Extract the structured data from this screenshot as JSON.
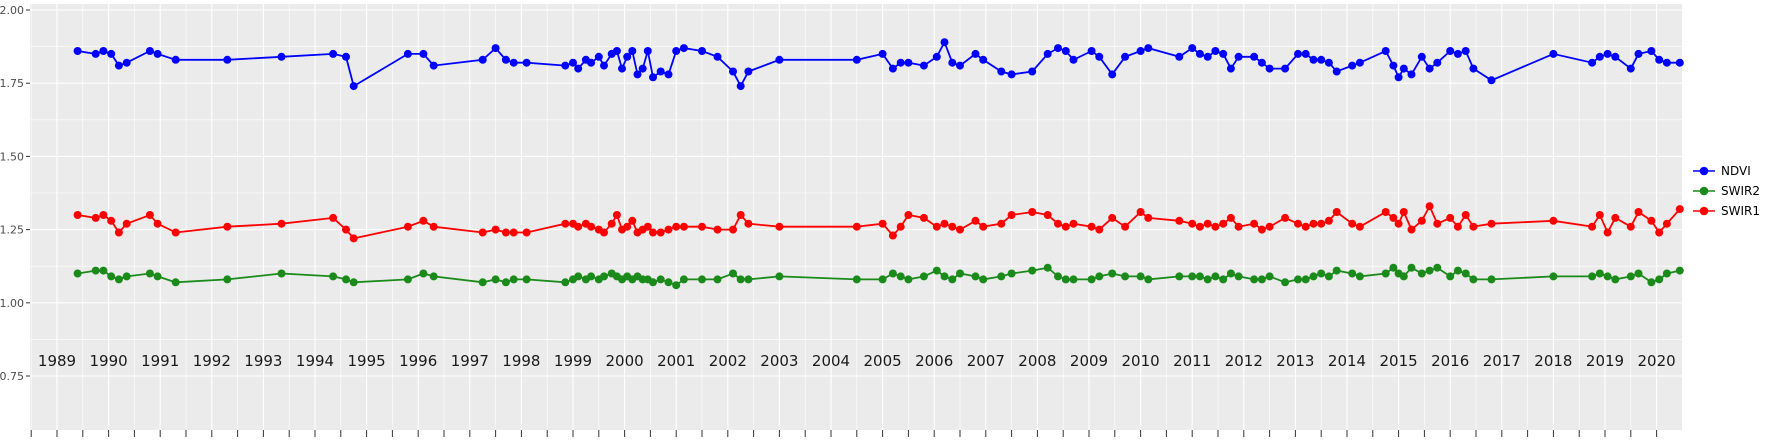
{
  "page": {
    "background": "#FFFFFF"
  },
  "chart_data": {
    "type": "line",
    "title": "",
    "xlabel": "",
    "ylabel": "",
    "panel_background": "#EBEBEB",
    "grid_color": "#FFFFFF",
    "axis_text_color": "#4D4D4D",
    "x_axis_label_color": "#1A1A1A",
    "tick_mark_color": "#333333",
    "legend_position": "right",
    "grid": true,
    "ylim": [
      0.75,
      2.0
    ],
    "xlim": [
      1988.47,
      2020.48
    ],
    "y_tick_labels": [
      "0.75",
      "1.00",
      "1.25",
      "1.50",
      "1.75",
      "2.00"
    ],
    "x_tick_labels": [
      "1989",
      "1990",
      "1991",
      "1992",
      "1993",
      "1994",
      "1995",
      "1996",
      "1997",
      "1998",
      "1999",
      "2000",
      "2001",
      "2002",
      "2003",
      "2004",
      "2005",
      "2006",
      "2007",
      "2008",
      "2009",
      "2010",
      "2011",
      "2012",
      "2013",
      "2014",
      "2015",
      "2016",
      "2017",
      "2018",
      "2019",
      "2020"
    ],
    "x": [
      1989.4,
      1989.75,
      1989.9,
      1990.05,
      1990.2,
      1990.35,
      1990.8,
      1990.95,
      1991.3,
      1992.3,
      1993.35,
      1994.35,
      1994.6,
      1994.75,
      1995.8,
      1996.1,
      1996.3,
      1997.25,
      1997.5,
      1997.7,
      1997.85,
      1998.1,
      1998.85,
      1999.0,
      1999.1,
      1999.25,
      1999.35,
      1999.5,
      1999.6,
      1999.75,
      1999.85,
      1999.95,
      2000.05,
      2000.15,
      2000.25,
      2000.35,
      2000.45,
      2000.55,
      2000.7,
      2000.85,
      2001.0,
      2001.15,
      2001.5,
      2001.8,
      2002.1,
      2002.25,
      2002.4,
      2003.0,
      2004.5,
      2005.0,
      2005.2,
      2005.35,
      2005.5,
      2005.8,
      2006.05,
      2006.2,
      2006.35,
      2006.5,
      2006.8,
      2006.95,
      2007.3,
      2007.5,
      2007.9,
      2008.2,
      2008.4,
      2008.55,
      2008.7,
      2009.05,
      2009.2,
      2009.45,
      2009.7,
      2010.0,
      2010.15,
      2010.75,
      2011.0,
      2011.15,
      2011.3,
      2011.45,
      2011.6,
      2011.75,
      2011.9,
      2012.2,
      2012.35,
      2012.5,
      2012.8,
      2013.05,
      2013.2,
      2013.35,
      2013.5,
      2013.65,
      2013.8,
      2014.1,
      2014.25,
      2014.75,
      2014.9,
      2015.0,
      2015.1,
      2015.25,
      2015.45,
      2015.6,
      2015.75,
      2016.0,
      2016.15,
      2016.3,
      2016.45,
      2016.8,
      2018.0,
      2018.75,
      2018.9,
      2019.05,
      2019.2,
      2019.5,
      2019.65,
      2019.9,
      2020.05,
      2020.2,
      2020.45
    ],
    "series": [
      {
        "name": "NDVI",
        "color": "#0000FF",
        "values": [
          1.86,
          1.85,
          1.86,
          1.85,
          1.81,
          1.82,
          1.86,
          1.85,
          1.83,
          1.83,
          1.84,
          1.85,
          1.84,
          1.74,
          1.85,
          1.85,
          1.81,
          1.83,
          1.87,
          1.83,
          1.82,
          1.82,
          1.81,
          1.82,
          1.8,
          1.83,
          1.82,
          1.84,
          1.81,
          1.85,
          1.86,
          1.8,
          1.84,
          1.86,
          1.78,
          1.8,
          1.86,
          1.77,
          1.79,
          1.78,
          1.86,
          1.87,
          1.86,
          1.84,
          1.79,
          1.74,
          1.79,
          1.83,
          1.83,
          1.85,
          1.8,
          1.82,
          1.82,
          1.81,
          1.84,
          1.89,
          1.82,
          1.81,
          1.85,
          1.83,
          1.79,
          1.78,
          1.79,
          1.85,
          1.87,
          1.86,
          1.83,
          1.86,
          1.84,
          1.78,
          1.84,
          1.86,
          1.87,
          1.84,
          1.87,
          1.85,
          1.84,
          1.86,
          1.85,
          1.8,
          1.84,
          1.84,
          1.82,
          1.8,
          1.8,
          1.85,
          1.85,
          1.83,
          1.83,
          1.82,
          1.79,
          1.81,
          1.82,
          1.86,
          1.81,
          1.77,
          1.8,
          1.78,
          1.84,
          1.8,
          1.82,
          1.86,
          1.85,
          1.86,
          1.8,
          1.76,
          1.85,
          1.82,
          1.84,
          1.85,
          1.84,
          1.8,
          1.85,
          1.86,
          1.83,
          1.82,
          1.82
        ]
      },
      {
        "name": "SWIR2",
        "color": "#1A8A1A",
        "values": [
          1.1,
          1.11,
          1.11,
          1.09,
          1.08,
          1.09,
          1.1,
          1.09,
          1.07,
          1.08,
          1.1,
          1.09,
          1.08,
          1.07,
          1.08,
          1.1,
          1.09,
          1.07,
          1.08,
          1.07,
          1.08,
          1.08,
          1.07,
          1.08,
          1.09,
          1.08,
          1.09,
          1.08,
          1.09,
          1.1,
          1.09,
          1.08,
          1.09,
          1.08,
          1.09,
          1.08,
          1.08,
          1.07,
          1.08,
          1.07,
          1.06,
          1.08,
          1.08,
          1.08,
          1.1,
          1.08,
          1.08,
          1.09,
          1.08,
          1.08,
          1.1,
          1.09,
          1.08,
          1.09,
          1.11,
          1.09,
          1.08,
          1.1,
          1.09,
          1.08,
          1.09,
          1.1,
          1.11,
          1.12,
          1.09,
          1.08,
          1.08,
          1.08,
          1.09,
          1.1,
          1.09,
          1.09,
          1.08,
          1.09,
          1.09,
          1.09,
          1.08,
          1.09,
          1.08,
          1.1,
          1.09,
          1.08,
          1.08,
          1.09,
          1.07,
          1.08,
          1.08,
          1.09,
          1.1,
          1.09,
          1.11,
          1.1,
          1.09,
          1.1,
          1.12,
          1.1,
          1.09,
          1.12,
          1.1,
          1.11,
          1.12,
          1.09,
          1.11,
          1.1,
          1.08,
          1.08,
          1.09,
          1.09,
          1.1,
          1.09,
          1.08,
          1.09,
          1.1,
          1.07,
          1.08,
          1.1,
          1.11
        ]
      },
      {
        "name": "SWIR1",
        "color": "#FF0000",
        "values": [
          1.3,
          1.29,
          1.3,
          1.28,
          1.24,
          1.27,
          1.3,
          1.27,
          1.24,
          1.26,
          1.27,
          1.29,
          1.25,
          1.22,
          1.26,
          1.28,
          1.26,
          1.24,
          1.25,
          1.24,
          1.24,
          1.24,
          1.27,
          1.27,
          1.26,
          1.27,
          1.26,
          1.25,
          1.24,
          1.27,
          1.3,
          1.25,
          1.26,
          1.28,
          1.24,
          1.25,
          1.26,
          1.24,
          1.24,
          1.25,
          1.26,
          1.26,
          1.26,
          1.25,
          1.25,
          1.3,
          1.27,
          1.26,
          1.26,
          1.27,
          1.23,
          1.26,
          1.3,
          1.29,
          1.26,
          1.27,
          1.26,
          1.25,
          1.28,
          1.26,
          1.27,
          1.3,
          1.31,
          1.3,
          1.27,
          1.26,
          1.27,
          1.26,
          1.25,
          1.29,
          1.26,
          1.31,
          1.29,
          1.28,
          1.27,
          1.26,
          1.27,
          1.26,
          1.27,
          1.29,
          1.26,
          1.27,
          1.25,
          1.26,
          1.29,
          1.27,
          1.26,
          1.27,
          1.27,
          1.28,
          1.31,
          1.27,
          1.26,
          1.31,
          1.29,
          1.27,
          1.31,
          1.25,
          1.28,
          1.33,
          1.27,
          1.29,
          1.26,
          1.3,
          1.26,
          1.27,
          1.28,
          1.26,
          1.3,
          1.24,
          1.29,
          1.26,
          1.31,
          1.28,
          1.24,
          1.27,
          1.32
        ]
      }
    ]
  }
}
